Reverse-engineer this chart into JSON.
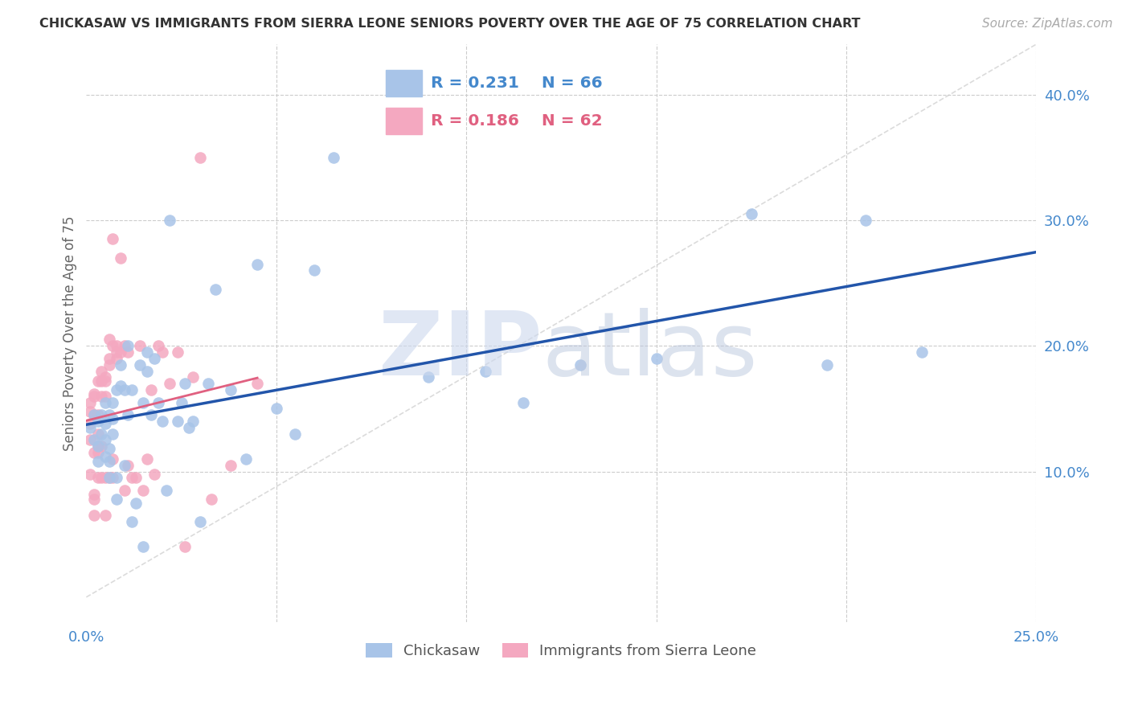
{
  "title": "CHICKASAW VS IMMIGRANTS FROM SIERRA LEONE SENIORS POVERTY OVER THE AGE OF 75 CORRELATION CHART",
  "source": "Source: ZipAtlas.com",
  "ylabel": "Seniors Poverty Over the Age of 75",
  "xlim": [
    0,
    0.25
  ],
  "ylim": [
    -0.02,
    0.44
  ],
  "blue_R": 0.231,
  "blue_N": 66,
  "pink_R": 0.186,
  "pink_N": 62,
  "blue_color": "#a8c4e8",
  "pink_color": "#f4a8c0",
  "blue_line_color": "#2255aa",
  "pink_line_color": "#e06080",
  "grid_color": "#cccccc",
  "tick_color": "#4488cc",
  "title_color": "#333333",
  "source_color": "#aaaaaa",
  "ylabel_color": "#666666",
  "watermark_zip_color": "#ccd8ee",
  "watermark_atlas_color": "#bbc8de",
  "blue_scatter_x": [
    0.001,
    0.002,
    0.002,
    0.003,
    0.003,
    0.003,
    0.004,
    0.004,
    0.005,
    0.005,
    0.005,
    0.005,
    0.006,
    0.006,
    0.006,
    0.006,
    0.007,
    0.007,
    0.007,
    0.008,
    0.008,
    0.008,
    0.009,
    0.009,
    0.01,
    0.01,
    0.011,
    0.011,
    0.012,
    0.012,
    0.013,
    0.014,
    0.015,
    0.015,
    0.016,
    0.016,
    0.017,
    0.018,
    0.019,
    0.02,
    0.021,
    0.022,
    0.024,
    0.025,
    0.026,
    0.027,
    0.028,
    0.03,
    0.032,
    0.034,
    0.038,
    0.042,
    0.045,
    0.05,
    0.055,
    0.06,
    0.065,
    0.09,
    0.105,
    0.115,
    0.13,
    0.15,
    0.175,
    0.195,
    0.205,
    0.22
  ],
  "blue_scatter_y": [
    0.135,
    0.125,
    0.145,
    0.14,
    0.12,
    0.108,
    0.13,
    0.145,
    0.125,
    0.138,
    0.112,
    0.155,
    0.118,
    0.108,
    0.145,
    0.095,
    0.13,
    0.155,
    0.142,
    0.078,
    0.095,
    0.165,
    0.185,
    0.168,
    0.105,
    0.165,
    0.2,
    0.145,
    0.06,
    0.165,
    0.075,
    0.185,
    0.155,
    0.04,
    0.18,
    0.195,
    0.145,
    0.19,
    0.155,
    0.14,
    0.085,
    0.3,
    0.14,
    0.155,
    0.17,
    0.135,
    0.14,
    0.06,
    0.17,
    0.245,
    0.165,
    0.11,
    0.265,
    0.15,
    0.13,
    0.26,
    0.35,
    0.175,
    0.18,
    0.155,
    0.185,
    0.19,
    0.305,
    0.185,
    0.3,
    0.195
  ],
  "pink_scatter_x": [
    0.001,
    0.001,
    0.001,
    0.001,
    0.001,
    0.002,
    0.002,
    0.002,
    0.002,
    0.002,
    0.002,
    0.002,
    0.003,
    0.003,
    0.003,
    0.003,
    0.003,
    0.003,
    0.004,
    0.004,
    0.004,
    0.004,
    0.004,
    0.005,
    0.005,
    0.005,
    0.005,
    0.005,
    0.006,
    0.006,
    0.006,
    0.006,
    0.007,
    0.007,
    0.007,
    0.007,
    0.008,
    0.008,
    0.008,
    0.009,
    0.009,
    0.01,
    0.01,
    0.011,
    0.011,
    0.012,
    0.013,
    0.014,
    0.015,
    0.016,
    0.017,
    0.018,
    0.019,
    0.02,
    0.022,
    0.024,
    0.026,
    0.028,
    0.03,
    0.033,
    0.038,
    0.045
  ],
  "pink_scatter_y": [
    0.138,
    0.155,
    0.125,
    0.148,
    0.098,
    0.162,
    0.145,
    0.115,
    0.078,
    0.065,
    0.082,
    0.16,
    0.172,
    0.145,
    0.115,
    0.095,
    0.13,
    0.12,
    0.172,
    0.16,
    0.12,
    0.095,
    0.18,
    0.172,
    0.16,
    0.095,
    0.175,
    0.065,
    0.19,
    0.185,
    0.095,
    0.205,
    0.2,
    0.285,
    0.11,
    0.095,
    0.19,
    0.2,
    0.195,
    0.195,
    0.27,
    0.085,
    0.2,
    0.105,
    0.195,
    0.095,
    0.095,
    0.2,
    0.085,
    0.11,
    0.165,
    0.098,
    0.2,
    0.195,
    0.17,
    0.195,
    0.04,
    0.175,
    0.35,
    0.078,
    0.105,
    0.17
  ],
  "ref_line_x": [
    0.0,
    0.25
  ],
  "ref_line_y": [
    0.0,
    0.44
  ]
}
